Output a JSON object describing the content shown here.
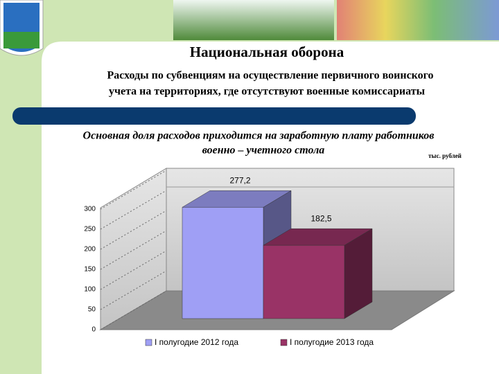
{
  "chart_data": {
    "type": "bar3d",
    "title": "Национальная оборона",
    "subtitle": [
      "Расходы по субвенциям на осуществление первичного воинского",
      "учета на территориях, где отсутствуют военные комиссариаты"
    ],
    "annotation": [
      "Основная доля расходов приходится на заработную плату работников",
      "военно – учетного стола"
    ],
    "unit": "тыс. рублей",
    "categories": [
      "I полугодие 2012 года",
      "I полугодие 2013 года"
    ],
    "values": [
      277.2,
      182.5
    ],
    "value_labels": [
      "277,2",
      "182,5"
    ],
    "colors": [
      "#9f9ff5",
      "#993366"
    ],
    "ylim": [
      0,
      300
    ],
    "yticks": [
      0,
      50,
      100,
      150,
      200,
      250,
      300
    ],
    "grid": true,
    "legend": "bottom"
  }
}
